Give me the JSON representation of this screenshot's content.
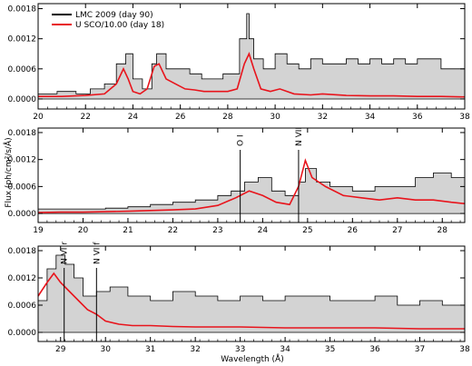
{
  "chart_data": [
    {
      "type": "line",
      "panel": 1,
      "xlim": [
        20,
        38
      ],
      "ylim": [
        -0.0002,
        0.0019
      ],
      "xticks": [
        20,
        22,
        24,
        26,
        28,
        30,
        32,
        34,
        36,
        38
      ],
      "xtick_labels": [
        "20",
        "22",
        "24",
        "26",
        "28",
        "30",
        "32",
        "34",
        "36",
        "38"
      ],
      "yticks": [
        0.0,
        0.0006,
        0.0012,
        0.0018
      ],
      "ytick_labels": [
        "0.0000",
        "0.0006",
        "0.0012",
        "0.0018"
      ],
      "legend": {
        "position": "top-left",
        "entries": [
          "LMC 2009 (day 90)",
          "U SCO/10.00 (day 18)"
        ]
      },
      "series": [
        {
          "name": "LMC 2009 (day 90)",
          "style": "step-filled",
          "color": "#000000",
          "fill": "#d3d3d3",
          "x": [
            20.0,
            20.8,
            21.6,
            22.2,
            22.8,
            23.3,
            23.7,
            24.0,
            24.4,
            24.8,
            25.0,
            25.4,
            25.9,
            26.4,
            26.9,
            27.4,
            27.8,
            28.2,
            28.5,
            28.8,
            28.9,
            29.1,
            29.5,
            30.0,
            30.5,
            31.0,
            31.5,
            32.0,
            32.5,
            33.0,
            33.5,
            34.0,
            34.5,
            35.0,
            35.5,
            36.0,
            36.5,
            37.0,
            37.5,
            38.0
          ],
          "y": [
            0.0001,
            0.00015,
            0.0001,
            0.0002,
            0.0003,
            0.0007,
            0.0009,
            0.0004,
            0.0002,
            0.0007,
            0.0009,
            0.0006,
            0.0006,
            0.0005,
            0.0004,
            0.0004,
            0.0005,
            0.0005,
            0.0012,
            0.0017,
            0.0012,
            0.0008,
            0.0006,
            0.0009,
            0.0007,
            0.0006,
            0.0008,
            0.0007,
            0.0007,
            0.0008,
            0.0007,
            0.0008,
            0.0007,
            0.0008,
            0.0007,
            0.0008,
            0.0008,
            0.0006,
            0.0006,
            0.0005
          ]
        },
        {
          "name": "U SCO/10.00 (day 18)",
          "style": "line",
          "color": "#e8141c",
          "x": [
            20.0,
            21.0,
            22.0,
            22.8,
            23.3,
            23.6,
            23.8,
            24.0,
            24.3,
            24.6,
            24.9,
            25.1,
            25.4,
            25.8,
            26.2,
            26.6,
            27.0,
            27.5,
            28.0,
            28.4,
            28.7,
            28.9,
            29.1,
            29.4,
            29.8,
            30.2,
            30.8,
            31.5,
            32.0,
            33.0,
            34.0,
            35.0,
            36.0,
            37.0,
            38.0
          ],
          "y": [
            5e-05,
            5e-05,
            7e-05,
            0.0001,
            0.0003,
            0.0006,
            0.0004,
            0.00015,
            0.0001,
            0.0002,
            0.00065,
            0.0007,
            0.0004,
            0.0003,
            0.0002,
            0.00018,
            0.00015,
            0.00015,
            0.00015,
            0.0002,
            0.0007,
            0.0009,
            0.0006,
            0.0002,
            0.00015,
            0.0002,
            0.0001,
            8e-05,
            0.0001,
            7e-05,
            6e-05,
            6e-05,
            5e-05,
            5e-05,
            4e-05
          ]
        }
      ]
    },
    {
      "type": "line",
      "panel": 2,
      "xlim": [
        19,
        28.5
      ],
      "ylim": [
        -0.0002,
        0.0019
      ],
      "xticks": [
        19,
        20,
        21,
        22,
        23,
        24,
        25,
        26,
        27,
        28
      ],
      "xtick_labels": [
        "19",
        "20",
        "21",
        "22",
        "23",
        "24",
        "25",
        "26",
        "27",
        "28"
      ],
      "yticks": [
        0.0,
        0.0006,
        0.0012,
        0.0018
      ],
      "ytick_labels": [
        "0.0000",
        "0.0006",
        "0.0012",
        "0.0018"
      ],
      "ylabel": "Flux (ph/cm²/s/Å)",
      "annotations": [
        {
          "label": "O I",
          "x": 23.5
        },
        {
          "label": "N VII",
          "x": 24.8
        }
      ],
      "series": [
        {
          "name": "LMC 2009 (day 90)",
          "style": "step-filled",
          "color": "#000000",
          "fill": "#d3d3d3",
          "x": [
            19.0,
            19.5,
            20.0,
            20.5,
            21.0,
            21.5,
            22.0,
            22.5,
            23.0,
            23.3,
            23.6,
            23.9,
            24.2,
            24.5,
            24.8,
            24.95,
            25.2,
            25.5,
            26.0,
            26.5,
            27.0,
            27.4,
            27.8,
            28.2,
            28.5
          ],
          "y": [
            0.0001,
            0.0001,
            0.0001,
            0.00012,
            0.00015,
            0.0002,
            0.00025,
            0.0003,
            0.0004,
            0.0005,
            0.0007,
            0.0008,
            0.0005,
            0.0004,
            0.0007,
            0.001,
            0.0007,
            0.0006,
            0.0005,
            0.0006,
            0.0006,
            0.0008,
            0.0009,
            0.0008,
            0.0004
          ]
        },
        {
          "name": "U SCO/10.00 (day 18)",
          "style": "line",
          "color": "#e8141c",
          "x": [
            19.0,
            19.5,
            20.0,
            21.0,
            22.0,
            22.5,
            23.0,
            23.4,
            23.7,
            24.0,
            24.3,
            24.6,
            24.8,
            24.95,
            25.1,
            25.4,
            25.8,
            26.2,
            26.6,
            27.0,
            27.4,
            27.8,
            28.2,
            28.5
          ],
          "y": [
            2e-05,
            3e-05,
            3e-05,
            5e-05,
            8e-05,
            0.0001,
            0.00018,
            0.00035,
            0.0005,
            0.0004,
            0.00025,
            0.0002,
            0.0006,
            0.00118,
            0.0008,
            0.0006,
            0.0004,
            0.00035,
            0.0003,
            0.00035,
            0.0003,
            0.0003,
            0.00025,
            0.00022
          ]
        }
      ]
    },
    {
      "type": "line",
      "panel": 3,
      "xlim": [
        28.5,
        38
      ],
      "ylim": [
        -0.0002,
        0.0019
      ],
      "xticks": [
        29,
        30,
        31,
        32,
        33,
        34,
        35,
        36,
        37,
        38
      ],
      "xtick_labels": [
        "29",
        "30",
        "31",
        "32",
        "33",
        "34",
        "35",
        "36",
        "37",
        "38"
      ],
      "yticks": [
        0.0,
        0.0006,
        0.0012,
        0.0018
      ],
      "ytick_labels": [
        "0.0000",
        "0.0006",
        "0.0012",
        "0.0018"
      ],
      "xlabel": "Wavelength (Å)",
      "annotations": [
        {
          "label": "N VI r",
          "x": 29.08
        },
        {
          "label": "N VI f",
          "x": 29.8
        }
      ],
      "series": [
        {
          "name": "LMC 2009 (day 90)",
          "style": "step-filled",
          "color": "#000000",
          "fill": "#d3d3d3",
          "x": [
            28.5,
            28.7,
            28.9,
            29.1,
            29.3,
            29.5,
            29.8,
            30.1,
            30.5,
            31.0,
            31.5,
            32.0,
            32.5,
            33.0,
            33.5,
            34.0,
            34.5,
            35.0,
            35.5,
            36.0,
            36.5,
            37.0,
            37.5,
            38.0
          ],
          "y": [
            0.0007,
            0.0014,
            0.0017,
            0.0015,
            0.0012,
            0.0008,
            0.0009,
            0.001,
            0.0008,
            0.0007,
            0.0009,
            0.0008,
            0.0007,
            0.0008,
            0.0007,
            0.0008,
            0.0008,
            0.0007,
            0.0007,
            0.0008,
            0.0006,
            0.0007,
            0.0006,
            0.0005
          ]
        },
        {
          "name": "U SCO/10.00 (day 18)",
          "style": "line",
          "color": "#e8141c",
          "x": [
            28.5,
            28.7,
            28.85,
            29.0,
            29.2,
            29.4,
            29.6,
            29.8,
            30.0,
            30.3,
            30.6,
            31.0,
            31.5,
            32.0,
            33.0,
            34.0,
            35.0,
            36.0,
            37.0,
            38.0
          ],
          "y": [
            0.0008,
            0.0011,
            0.0013,
            0.0011,
            0.0009,
            0.0007,
            0.0005,
            0.0004,
            0.00025,
            0.00018,
            0.00015,
            0.00015,
            0.00013,
            0.00012,
            0.00012,
            0.0001,
            0.0001,
            0.0001,
            8e-05,
            8e-05
          ]
        }
      ]
    }
  ]
}
